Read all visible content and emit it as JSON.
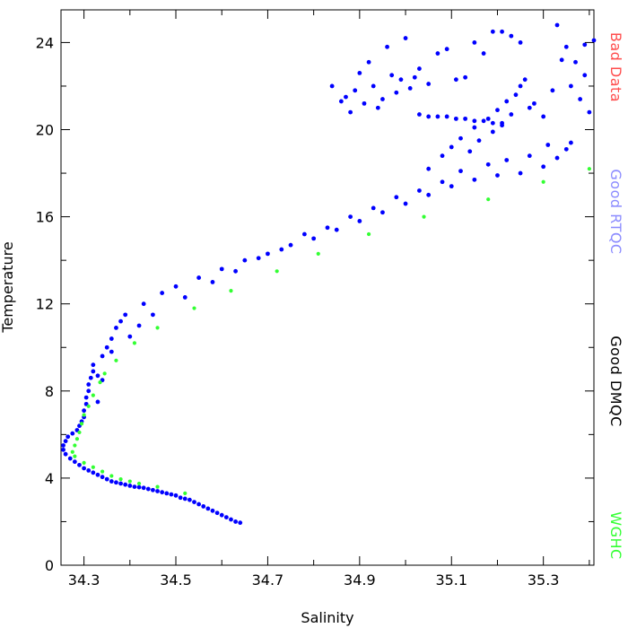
{
  "chart_data": {
    "type": "scatter",
    "title": "",
    "xlabel": "Salinity",
    "ylabel": "Temperature",
    "xlim": [
      34.25,
      35.41
    ],
    "ylim": [
      0,
      25.5
    ],
    "x_ticks": [
      34.3,
      34.5,
      34.7,
      34.9,
      35.1,
      35.3
    ],
    "x_tick_labels": [
      "34.3",
      "34.5",
      "34.7",
      "34.9",
      "35.1",
      "35.3"
    ],
    "y_ticks": [
      0,
      4,
      8,
      12,
      16,
      20,
      24
    ],
    "y_tick_labels": [
      "0",
      "4",
      "8",
      "12",
      "16",
      "20",
      "24"
    ],
    "grid": false,
    "legend": {
      "placement": "right-vertical",
      "entries": [
        {
          "label": "Bad Data",
          "color": "#ff4d4d"
        },
        {
          "label": "Good RTQC",
          "color": "#8c8cff"
        },
        {
          "label": "Good DMQC",
          "color": "#000000"
        },
        {
          "label": "WGHC",
          "color": "#33ff33"
        }
      ]
    },
    "series": [
      {
        "name": "Good RTQC",
        "color": "#0000ff",
        "marker_size": 2.4,
        "points": [
          [
            34.64,
            1.95
          ],
          [
            34.63,
            2.0
          ],
          [
            34.62,
            2.1
          ],
          [
            34.61,
            2.2
          ],
          [
            34.6,
            2.3
          ],
          [
            34.59,
            2.4
          ],
          [
            34.58,
            2.5
          ],
          [
            34.57,
            2.6
          ],
          [
            34.56,
            2.7
          ],
          [
            34.55,
            2.8
          ],
          [
            34.54,
            2.9
          ],
          [
            34.53,
            3.0
          ],
          [
            34.52,
            3.05
          ],
          [
            34.51,
            3.1
          ],
          [
            34.5,
            3.2
          ],
          [
            34.49,
            3.25
          ],
          [
            34.48,
            3.3
          ],
          [
            34.47,
            3.35
          ],
          [
            34.46,
            3.4
          ],
          [
            34.45,
            3.45
          ],
          [
            34.44,
            3.5
          ],
          [
            34.43,
            3.55
          ],
          [
            34.42,
            3.58
          ],
          [
            34.41,
            3.6
          ],
          [
            34.4,
            3.65
          ],
          [
            34.39,
            3.7
          ],
          [
            34.38,
            3.75
          ],
          [
            34.37,
            3.8
          ],
          [
            34.36,
            3.85
          ],
          [
            34.35,
            3.95
          ],
          [
            34.34,
            4.05
          ],
          [
            34.33,
            4.15
          ],
          [
            34.32,
            4.25
          ],
          [
            34.31,
            4.35
          ],
          [
            34.3,
            4.45
          ],
          [
            34.29,
            4.6
          ],
          [
            34.28,
            4.75
          ],
          [
            34.27,
            4.9
          ],
          [
            34.26,
            5.1
          ],
          [
            34.255,
            5.3
          ],
          [
            34.255,
            5.5
          ],
          [
            34.26,
            5.7
          ],
          [
            34.265,
            5.9
          ],
          [
            34.275,
            6.05
          ],
          [
            34.285,
            6.2
          ],
          [
            34.29,
            6.4
          ],
          [
            34.295,
            6.6
          ],
          [
            34.3,
            6.8
          ],
          [
            34.3,
            7.1
          ],
          [
            34.305,
            7.4
          ],
          [
            34.305,
            7.7
          ],
          [
            34.31,
            8.0
          ],
          [
            34.31,
            8.3
          ],
          [
            34.315,
            8.6
          ],
          [
            34.32,
            8.9
          ],
          [
            34.32,
            9.2
          ],
          [
            34.33,
            8.7
          ],
          [
            34.34,
            9.6
          ],
          [
            34.35,
            10.0
          ],
          [
            34.36,
            10.4
          ],
          [
            34.37,
            10.9
          ],
          [
            34.38,
            11.2
          ],
          [
            34.39,
            11.5
          ],
          [
            34.42,
            11.0
          ],
          [
            34.43,
            12.0
          ],
          [
            34.47,
            12.5
          ],
          [
            34.5,
            12.8
          ],
          [
            34.55,
            13.2
          ],
          [
            34.6,
            13.6
          ],
          [
            34.65,
            14.0
          ],
          [
            34.7,
            14.3
          ],
          [
            34.75,
            14.7
          ],
          [
            34.8,
            15.0
          ],
          [
            34.85,
            15.4
          ],
          [
            34.9,
            15.8
          ],
          [
            34.95,
            16.2
          ],
          [
            35.0,
            16.6
          ],
          [
            35.05,
            17.0
          ],
          [
            35.1,
            17.4
          ],
          [
            35.15,
            17.7
          ],
          [
            35.2,
            17.9
          ],
          [
            35.25,
            18.0
          ],
          [
            35.3,
            18.3
          ],
          [
            35.33,
            18.7
          ],
          [
            35.35,
            19.1
          ],
          [
            35.36,
            19.4
          ],
          [
            34.33,
            7.5
          ],
          [
            34.34,
            8.5
          ],
          [
            34.36,
            9.8
          ],
          [
            34.4,
            10.5
          ],
          [
            34.45,
            11.5
          ],
          [
            34.52,
            12.3
          ],
          [
            34.58,
            13.0
          ],
          [
            34.63,
            13.5
          ],
          [
            34.68,
            14.1
          ],
          [
            34.73,
            14.5
          ],
          [
            34.78,
            15.2
          ],
          [
            34.83,
            15.5
          ],
          [
            34.88,
            16.0
          ],
          [
            34.93,
            16.4
          ],
          [
            34.98,
            16.9
          ],
          [
            35.03,
            17.2
          ],
          [
            35.08,
            17.6
          ],
          [
            35.12,
            18.1
          ],
          [
            35.18,
            18.4
          ],
          [
            35.22,
            18.6
          ],
          [
            35.27,
            18.8
          ],
          [
            35.31,
            19.3
          ],
          [
            35.05,
            18.2
          ],
          [
            35.08,
            18.8
          ],
          [
            35.1,
            19.2
          ],
          [
            35.12,
            19.6
          ],
          [
            35.15,
            20.1
          ],
          [
            35.18,
            20.5
          ],
          [
            35.2,
            20.9
          ],
          [
            35.22,
            21.3
          ],
          [
            35.24,
            21.6
          ],
          [
            35.25,
            22.0
          ],
          [
            35.26,
            22.3
          ],
          [
            35.28,
            21.2
          ],
          [
            35.3,
            20.6
          ],
          [
            35.32,
            21.8
          ],
          [
            35.14,
            19.0
          ],
          [
            35.16,
            19.5
          ],
          [
            35.19,
            19.9
          ],
          [
            35.21,
            20.2
          ],
          [
            35.23,
            20.7
          ],
          [
            35.27,
            21.0
          ],
          [
            35.03,
            20.7
          ],
          [
            35.05,
            20.6
          ],
          [
            35.07,
            20.6
          ],
          [
            35.09,
            20.6
          ],
          [
            35.11,
            20.5
          ],
          [
            35.13,
            20.5
          ],
          [
            35.15,
            20.4
          ],
          [
            35.17,
            20.4
          ],
          [
            35.19,
            20.3
          ],
          [
            35.21,
            20.3
          ],
          [
            34.87,
            21.5
          ],
          [
            34.89,
            21.8
          ],
          [
            34.91,
            21.2
          ],
          [
            34.93,
            22.0
          ],
          [
            34.95,
            21.4
          ],
          [
            34.97,
            22.5
          ],
          [
            34.99,
            22.3
          ],
          [
            35.01,
            21.9
          ],
          [
            35.03,
            22.8
          ],
          [
            35.05,
            22.1
          ],
          [
            35.07,
            23.5
          ],
          [
            35.09,
            23.7
          ],
          [
            35.11,
            22.3
          ],
          [
            35.13,
            22.4
          ],
          [
            35.15,
            24.0
          ],
          [
            35.17,
            23.5
          ],
          [
            35.19,
            24.5
          ],
          [
            35.21,
            24.5
          ],
          [
            35.23,
            24.3
          ],
          [
            35.25,
            24.0
          ],
          [
            34.84,
            22.0
          ],
          [
            34.86,
            21.3
          ],
          [
            34.88,
            20.8
          ],
          [
            34.9,
            22.6
          ],
          [
            34.92,
            23.1
          ],
          [
            34.94,
            21.0
          ],
          [
            34.96,
            23.8
          ],
          [
            34.98,
            21.7
          ],
          [
            35.0,
            24.2
          ],
          [
            35.02,
            22.4
          ],
          [
            35.33,
            24.8
          ],
          [
            35.35,
            23.8
          ],
          [
            35.37,
            23.1
          ],
          [
            35.39,
            22.5
          ],
          [
            35.41,
            24.1
          ],
          [
            35.38,
            21.4
          ],
          [
            35.4,
            20.8
          ],
          [
            35.36,
            22.0
          ],
          [
            35.34,
            23.2
          ],
          [
            35.39,
            23.9
          ]
        ]
      },
      {
        "name": "WGHC",
        "color": "#33ff33",
        "marker_size": 2.1,
        "points": [
          [
            35.4,
            18.2
          ],
          [
            35.3,
            17.6
          ],
          [
            35.18,
            16.8
          ],
          [
            35.04,
            16.0
          ],
          [
            34.92,
            15.2
          ],
          [
            34.81,
            14.3
          ],
          [
            34.72,
            13.5
          ],
          [
            34.62,
            12.6
          ],
          [
            34.54,
            11.8
          ],
          [
            34.46,
            10.9
          ],
          [
            34.41,
            10.2
          ],
          [
            34.37,
            9.4
          ],
          [
            34.345,
            8.8
          ],
          [
            34.335,
            8.4
          ],
          [
            34.32,
            7.8
          ],
          [
            34.31,
            7.3
          ],
          [
            34.3,
            6.9
          ],
          [
            34.295,
            6.5
          ],
          [
            34.29,
            6.1
          ],
          [
            34.285,
            5.8
          ],
          [
            34.28,
            5.5
          ],
          [
            34.275,
            5.2
          ],
          [
            34.28,
            5.0
          ],
          [
            34.3,
            4.7
          ],
          [
            34.32,
            4.5
          ],
          [
            34.34,
            4.3
          ],
          [
            34.36,
            4.1
          ],
          [
            34.38,
            3.95
          ],
          [
            34.4,
            3.85
          ],
          [
            34.42,
            3.75
          ],
          [
            34.46,
            3.6
          ],
          [
            34.52,
            3.3
          ]
        ]
      }
    ]
  }
}
